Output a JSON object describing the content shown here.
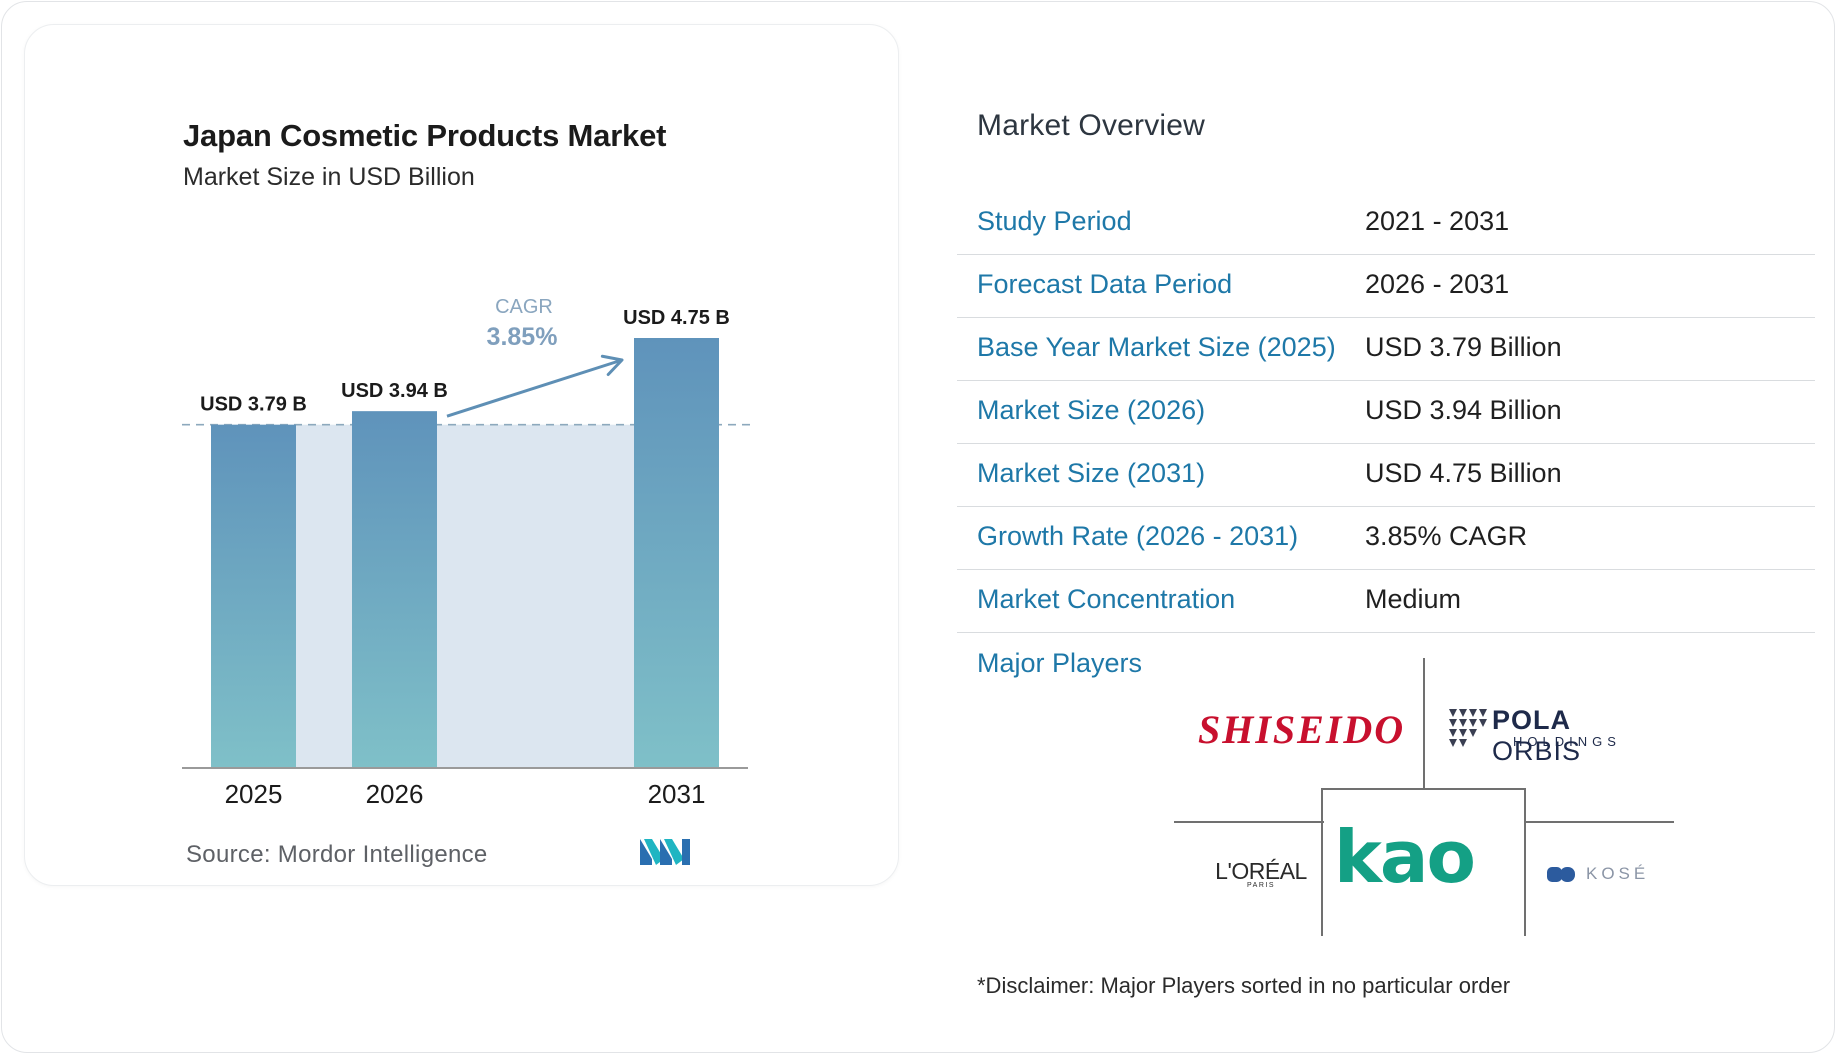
{
  "chart_data": {
    "type": "bar",
    "title": "Japan Cosmetic Products Market",
    "subtitle": "Market Size in USD Billion",
    "categories": [
      "2025",
      "2026",
      "2031"
    ],
    "values": [
      3.79,
      3.94,
      4.75
    ],
    "value_labels": [
      "USD 3.79 B",
      "USD 3.94 B",
      "USD 4.75 B"
    ],
    "cagr_label": "CAGR",
    "cagr_value": "3.85%",
    "ylim": [
      0,
      4.75
    ],
    "grid": false,
    "colors": {
      "bar_top": "#5f93bb",
      "bar_bottom": "#7fc0c8",
      "band": "#dce6f0",
      "arrow": "#5e8fb5",
      "cagr_label": "#8aa6bf"
    }
  },
  "source": "Source: Mordor Intelligence",
  "overview": {
    "title": "Market Overview",
    "rows": [
      {
        "label": "Study Period",
        "value": "2021 - 2031"
      },
      {
        "label": "Forecast Data Period",
        "value": "2026 - 2031"
      },
      {
        "label": "Base Year Market Size (2025)",
        "value": "USD 3.79 Billion"
      },
      {
        "label": "Market Size (2026)",
        "value": "USD 3.94 Billion"
      },
      {
        "label": "Market Size (2031)",
        "value": "USD 4.75 Billion"
      },
      {
        "label": "Growth Rate (2026 - 2031)",
        "value": "3.85% CAGR"
      },
      {
        "label": "Market Concentration",
        "value": "Medium"
      }
    ]
  },
  "players": {
    "label": "Major Players",
    "logos": {
      "shiseido": "SHISEIDO",
      "pola_bold": "POLA",
      "pola_rest": "ORBIS",
      "pola_sub": "HOLDINGS",
      "kao": "kao",
      "loreal": "L'ORÉAL",
      "loreal_sub": "PARIS",
      "kose": "KOSÉ"
    }
  },
  "disclaimer": "*Disclaimer: Major Players sorted in no particular order",
  "colors": {
    "accent": "#1e78a8",
    "kao": "#14a085",
    "shiseido": "#c8102e"
  }
}
